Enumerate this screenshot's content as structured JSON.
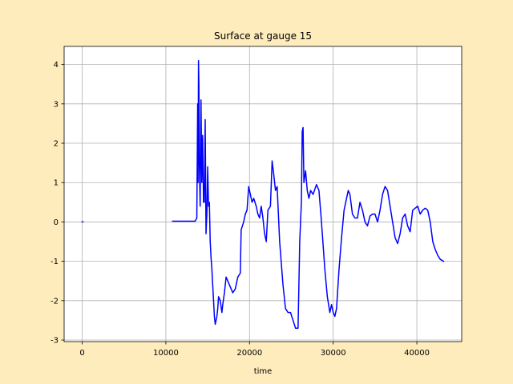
{
  "chart_data": {
    "type": "line",
    "title": "Surface at gauge 15",
    "xlabel": "time",
    "xlim": [
      -2160,
      45360
    ],
    "ylim": [
      -3.04,
      4.46
    ],
    "xticks": [
      0,
      10000,
      20000,
      30000,
      40000
    ],
    "yticks": [
      -3,
      -2,
      -1,
      0,
      1,
      2,
      3,
      4
    ],
    "grid": true,
    "x": [
      0,
      100,
      5000,
      10800,
      12000,
      13000,
      13500,
      13700,
      13800,
      13850,
      13900,
      13950,
      14000,
      14100,
      14200,
      14300,
      14400,
      14500,
      14600,
      14700,
      14800,
      14900,
      15000,
      15100,
      15200,
      15300,
      15400,
      15500,
      15600,
      15700,
      15800,
      15900,
      16000,
      16100,
      16200,
      16300,
      16500,
      16700,
      16800,
      17000,
      17200,
      17400,
      17600,
      17800,
      18000,
      18300,
      18600,
      18900,
      19000,
      19300,
      19500,
      19700,
      19900,
      20100,
      20300,
      20500,
      20800,
      21000,
      21200,
      21400,
      21600,
      21800,
      22000,
      22200,
      22500,
      22700,
      22900,
      23100,
      23300,
      23600,
      24000,
      24300,
      24600,
      24900,
      25200,
      25500,
      25800,
      26000,
      26200,
      26300,
      26400,
      26500,
      26700,
      26900,
      27100,
      27300,
      27600,
      28000,
      28300,
      28600,
      29000,
      29300,
      29600,
      29800,
      30000,
      30200,
      30400,
      30700,
      31000,
      31300,
      31600,
      31800,
      32000,
      32300,
      32600,
      32900,
      33200,
      33500,
      33800,
      34100,
      34400,
      34700,
      35000,
      35300,
      35600,
      35900,
      36200,
      36500,
      36800,
      37100,
      37400,
      37700,
      38000,
      38300,
      38600,
      38900,
      39200,
      39500,
      39800,
      40100,
      40400,
      40700,
      41000,
      41300,
      41600,
      41900,
      42200,
      42500,
      42800,
      43200
    ],
    "series": [
      {
        "color": "#0000ff",
        "values": [
          0,
          0,
          null,
          0.02,
          0.02,
          0.02,
          0.02,
          0.1,
          3.0,
          1.0,
          4.1,
          3.5,
          1.5,
          0.4,
          3.1,
          1.0,
          2.2,
          0.5,
          0.5,
          2.6,
          -0.3,
          0.2,
          1.4,
          0.4,
          0.5,
          -0.5,
          -0.9,
          -1.2,
          -1.6,
          -2.0,
          -2.4,
          -2.6,
          -2.5,
          -2.4,
          -2.2,
          -1.9,
          -2.0,
          -2.3,
          -2.1,
          -1.8,
          -1.4,
          -1.5,
          -1.6,
          -1.7,
          -1.8,
          -1.7,
          -1.4,
          -1.3,
          -0.2,
          0.0,
          0.2,
          0.3,
          0.9,
          0.7,
          0.5,
          0.6,
          0.4,
          0.2,
          0.1,
          0.4,
          0.1,
          -0.3,
          -0.5,
          0.3,
          0.4,
          1.55,
          1.2,
          0.8,
          0.9,
          -0.5,
          -1.6,
          -2.2,
          -2.3,
          -2.3,
          -2.5,
          -2.7,
          -2.7,
          -0.5,
          0.5,
          2.3,
          2.4,
          1.0,
          1.3,
          0.8,
          0.6,
          0.8,
          0.7,
          0.95,
          0.8,
          0.0,
          -1.2,
          -1.9,
          -2.3,
          -2.1,
          -2.3,
          -2.4,
          -2.2,
          -1.2,
          -0.4,
          0.3,
          0.6,
          0.8,
          0.7,
          0.2,
          0.1,
          0.1,
          0.5,
          0.3,
          0.0,
          -0.1,
          0.15,
          0.2,
          0.2,
          0.0,
          0.3,
          0.7,
          0.9,
          0.8,
          0.4,
          0.0,
          -0.4,
          -0.55,
          -0.3,
          0.1,
          0.2,
          -0.1,
          -0.25,
          0.3,
          0.35,
          0.4,
          0.2,
          0.3,
          0.35,
          0.3,
          0.0,
          -0.5,
          -0.7,
          -0.85,
          -0.95,
          -1.0
        ]
      }
    ]
  }
}
